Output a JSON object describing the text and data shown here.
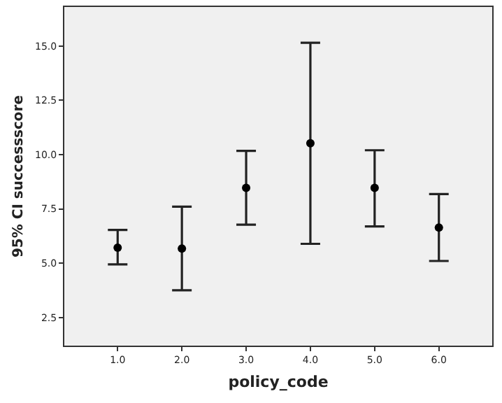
{
  "chart_data": {
    "type": "scatter",
    "xlabel": "policy_code",
    "ylabel": "95% CI successscore",
    "categories": [
      "1.0",
      "2.0",
      "3.0",
      "4.0",
      "5.0",
      "6.0"
    ],
    "values": [
      5.71,
      5.67,
      8.47,
      10.52,
      8.47,
      6.64
    ],
    "errors": [
      [
        4.94,
        6.53
      ],
      [
        3.75,
        7.6
      ],
      [
        6.77,
        10.17
      ],
      [
        5.89,
        15.15
      ],
      [
        6.69,
        10.2
      ],
      [
        5.1,
        8.18
      ]
    ],
    "color": "#000000",
    "marker": "circle",
    "grid": false,
    "ylim": [
      1.2,
      16.8
    ],
    "yticks": [
      {
        "value": 2.5,
        "label": "2.5"
      },
      {
        "value": 5,
        "label": "5.0"
      },
      {
        "value": 7.5,
        "label": "7.5"
      },
      {
        "value": 10,
        "label": "10.0"
      },
      {
        "value": 12.5,
        "label": "12.5"
      },
      {
        "value": 15,
        "label": "15.0"
      }
    ]
  }
}
